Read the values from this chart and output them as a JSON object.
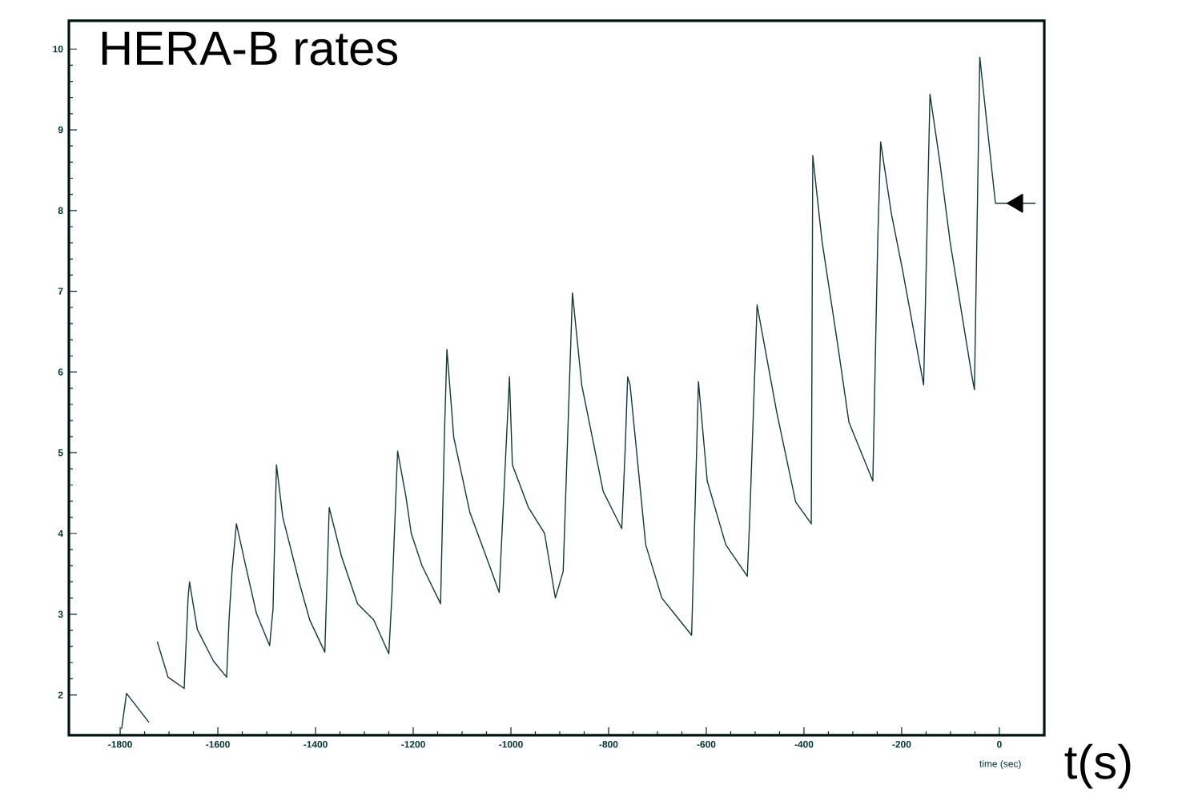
{
  "chart_data": {
    "type": "line",
    "title": "HERA-B rates",
    "xlabel": "time (sec)",
    "annotations": [
      "t(s)"
    ],
    "xlim": [
      -1905,
      92
    ],
    "ylim": [
      1.5,
      10.35
    ],
    "xticks": [
      -1800,
      -1600,
      -1400,
      -1200,
      -1000,
      -800,
      -600,
      -400,
      -200,
      0
    ],
    "yticks": [
      2,
      3,
      4,
      5,
      6,
      7,
      8,
      9,
      10
    ],
    "marker": "none",
    "line_style": "solid",
    "series": [
      {
        "color": "#123838",
        "x": [
          -1797,
          -1787,
          -1741,
          -1727,
          -1724,
          -1702,
          -1669,
          -1661,
          -1658,
          -1642,
          -1609,
          -1582,
          -1577,
          -1571,
          -1562,
          -1543,
          -1521,
          -1494,
          -1487,
          -1480,
          -1467,
          -1434,
          -1412,
          -1381,
          -1372,
          -1347,
          -1314,
          -1281,
          -1250,
          -1243,
          -1232,
          -1215,
          -1204,
          -1182,
          -1144,
          -1136,
          -1131,
          -1117,
          -1084,
          -1051,
          -1024,
          -1003,
          -997,
          -964,
          -931,
          -909,
          -893,
          -874,
          -855,
          -811,
          -773,
          -766,
          -761,
          -756,
          -724,
          -691,
          -630,
          -616,
          -598,
          -560,
          -516,
          -511,
          -496,
          -456,
          -417,
          -385,
          -382,
          -363,
          -330,
          -308,
          -259,
          -249,
          -243,
          -221,
          -199,
          -155,
          -142,
          -122,
          -101,
          -57,
          -51,
          -40,
          -8,
          74
        ],
        "values": [
          1.58,
          2.02,
          1.66,
          null,
          2.66,
          2.22,
          2.08,
          3.2,
          3.4,
          2.81,
          2.42,
          2.22,
          2.94,
          3.53,
          4.12,
          3.6,
          3.01,
          2.61,
          3.07,
          4.85,
          4.2,
          3.41,
          2.93,
          2.53,
          4.32,
          3.72,
          3.13,
          2.93,
          2.51,
          3.3,
          5.02,
          4.46,
          4.0,
          3.6,
          3.13,
          5.25,
          6.28,
          5.19,
          4.26,
          3.72,
          3.27,
          5.94,
          4.85,
          4.32,
          4.0,
          3.2,
          3.53,
          6.98,
          5.84,
          4.52,
          4.06,
          5.05,
          5.94,
          5.84,
          3.86,
          3.2,
          2.74,
          5.88,
          4.65,
          3.86,
          3.47,
          4.2,
          6.83,
          5.51,
          4.39,
          4.12,
          8.68,
          7.62,
          6.3,
          5.38,
          4.65,
          7.62,
          8.85,
          7.96,
          7.29,
          5.84,
          9.44,
          8.61,
          7.62,
          5.98,
          5.78,
          9.9,
          8.09,
          8.09
        ]
      },
      {
        "type": "scatter",
        "marker": "triangle",
        "color": "#000000",
        "x": [
          37
        ],
        "values": [
          8.09
        ]
      }
    ]
  }
}
